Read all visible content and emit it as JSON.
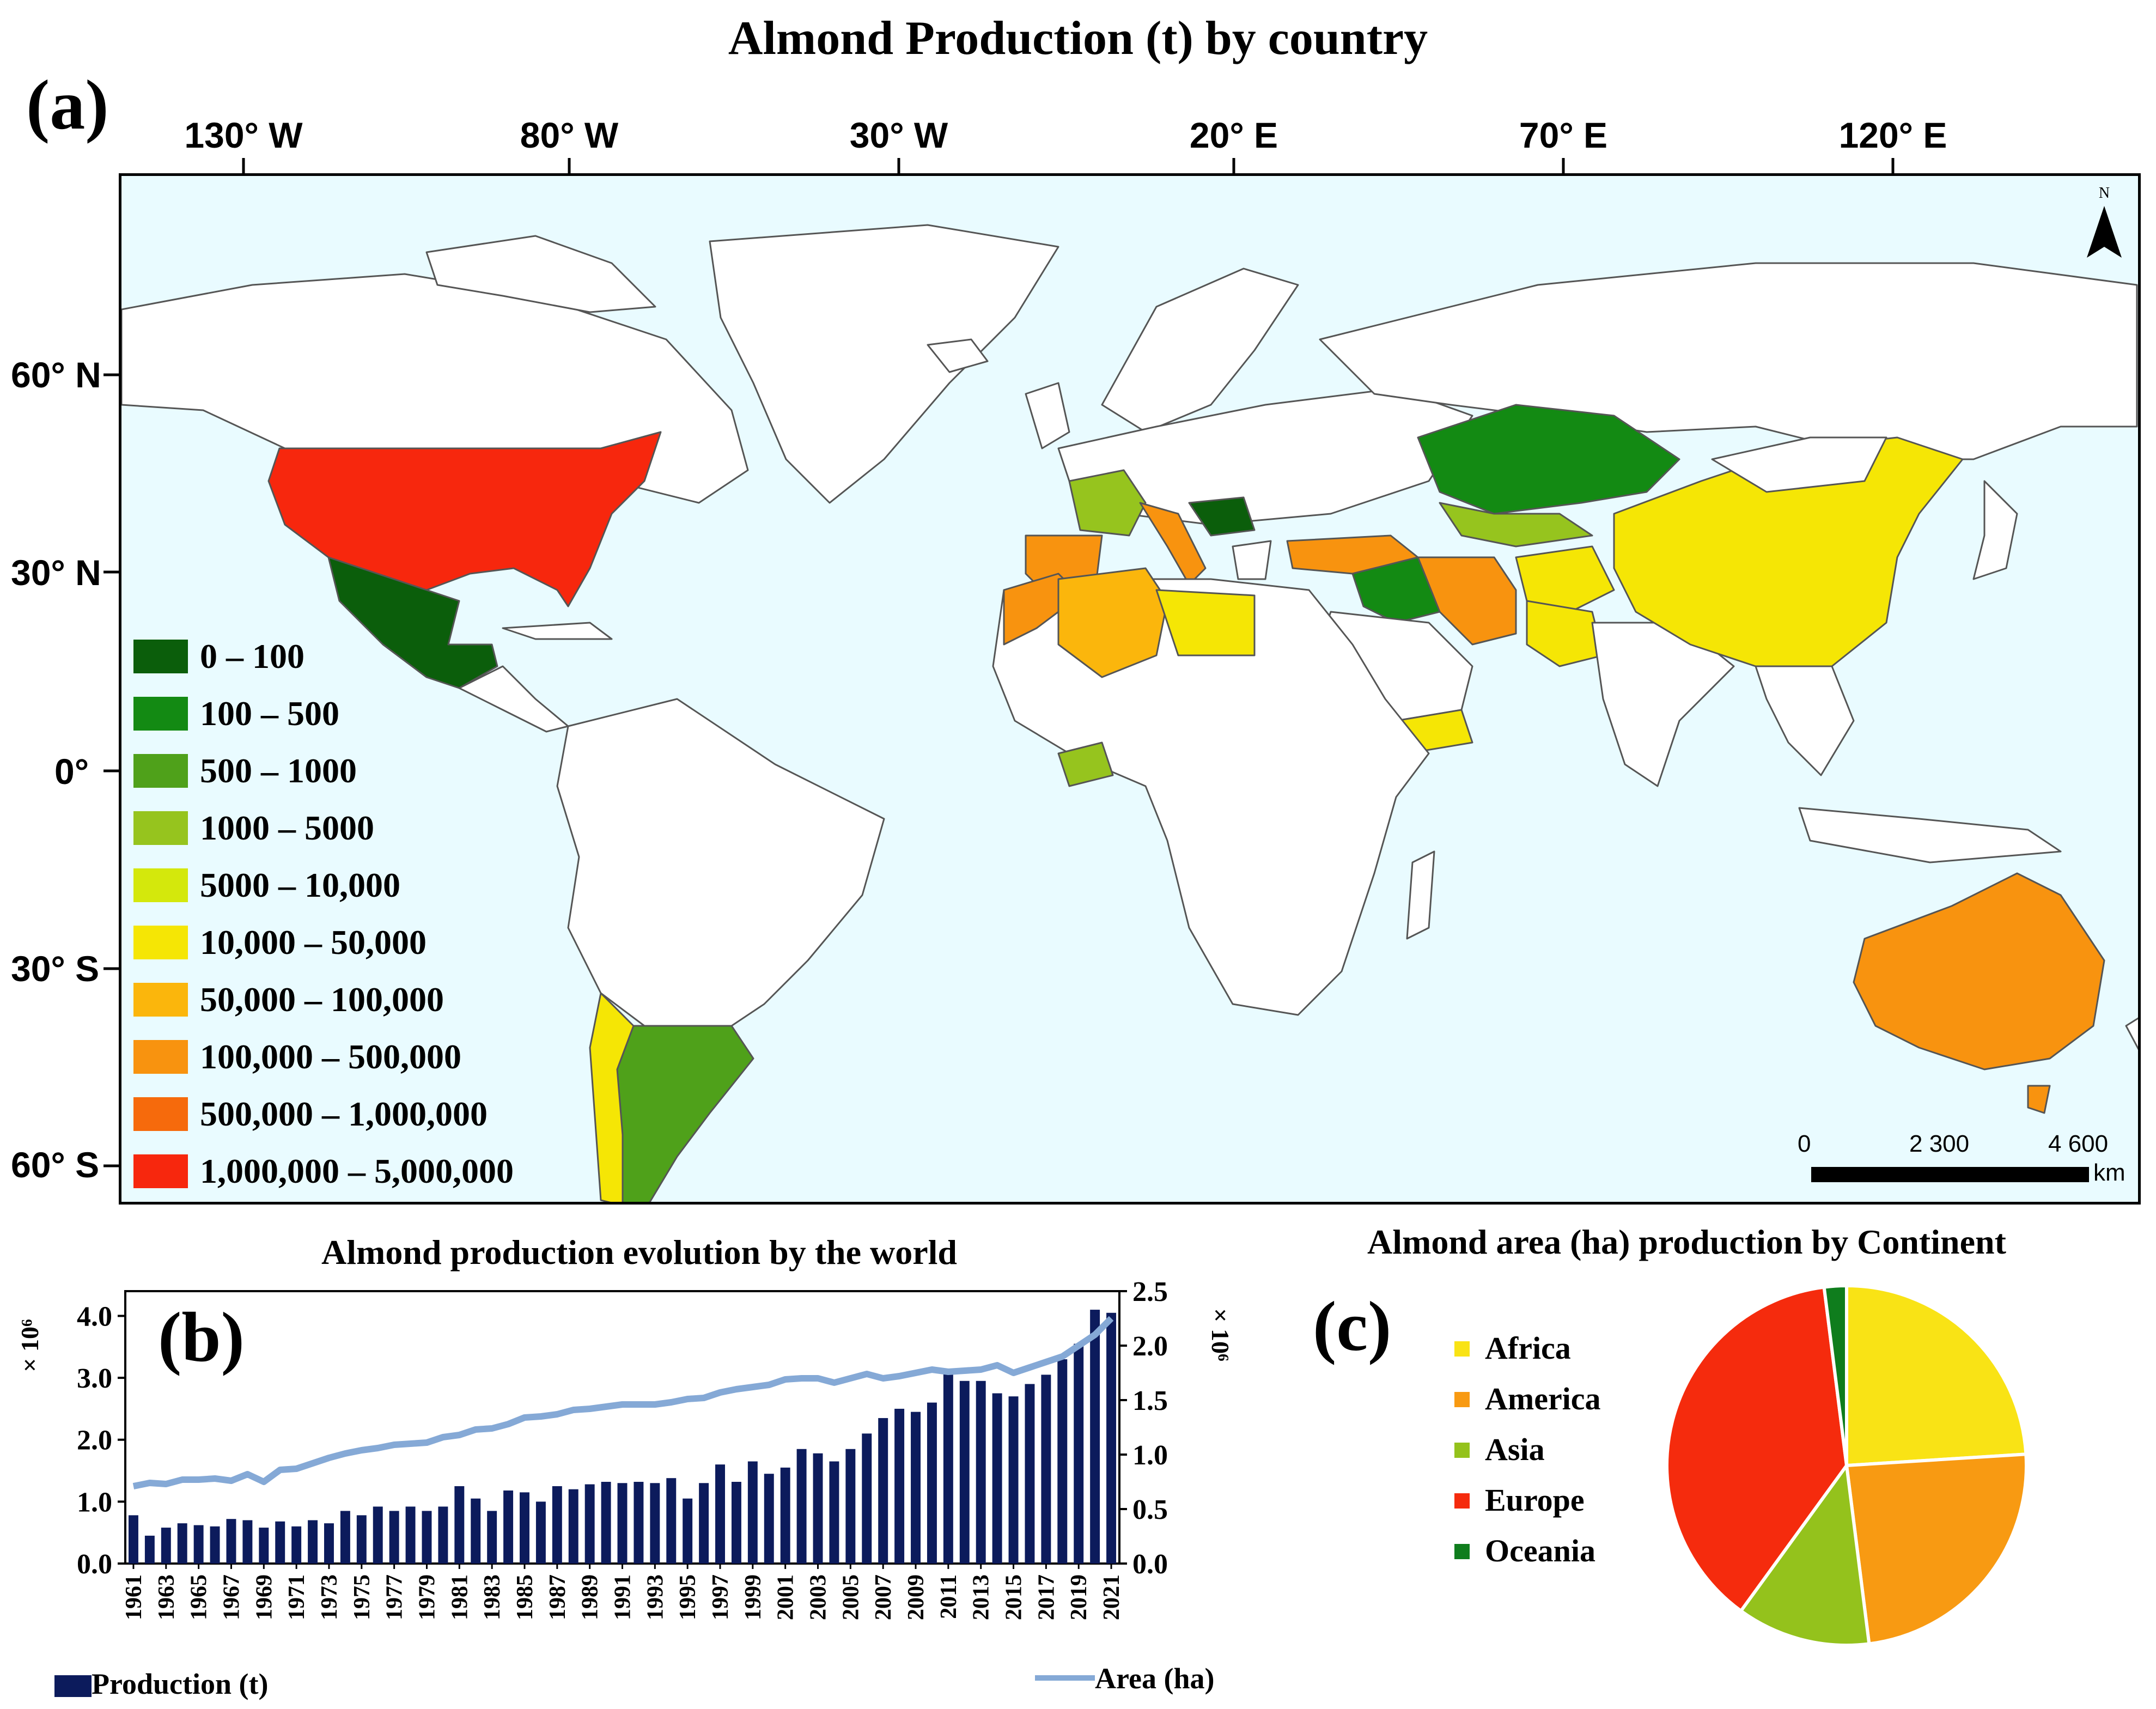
{
  "figure": {
    "title": "Almond Production (t) by country",
    "label_a": "(a)",
    "label_b": "(b)",
    "label_c": "(c)"
  },
  "map": {
    "longitude_labels": [
      "130° W",
      "80° W",
      "30° W",
      "20° E",
      "70° E",
      "120° E"
    ],
    "latitude_labels": [
      "60° N",
      "30° N",
      "0°",
      "30° S",
      "60° S"
    ],
    "north_label": "N",
    "scale": {
      "ticks": [
        "0",
        "2 300",
        "4 600"
      ],
      "unit": "km"
    },
    "legend": [
      {
        "label": "0 – 100",
        "color": "#0b5e0b"
      },
      {
        "label": "100 – 500",
        "color": "#138a13"
      },
      {
        "label": "500 – 1000",
        "color": "#4fa11a"
      },
      {
        "label": "1000 – 5000",
        "color": "#96c41e"
      },
      {
        "label": "5000 – 10,000",
        "color": "#d4e80c"
      },
      {
        "label": "10,000 – 50,000",
        "color": "#f5e605"
      },
      {
        "label": "50,000 – 100,000",
        "color": "#fbb60c"
      },
      {
        "label": "100,000 – 500,000",
        "color": "#f8930f"
      },
      {
        "label": "500,000 – 1,000,000",
        "color": "#f66a0c"
      },
      {
        "label": "1,000,000 – 5,000,000",
        "color": "#f7270d"
      }
    ],
    "colors": {
      "ocean": "#e9fbff",
      "land": "#ffffff",
      "border": "#555555"
    }
  },
  "chart_data": [
    {
      "type": "bar",
      "title": "Almond production evolution by the world",
      "left_axis_multiplier": "× 10⁶",
      "right_axis_multiplier": "× 10⁶",
      "left_ticks": [
        "0.0",
        "1.0",
        "2.0",
        "3.0",
        "4.0"
      ],
      "right_ticks": [
        "0.0",
        "0.5",
        "1.0",
        "1.5",
        "2.0",
        "2.5"
      ],
      "ylim_left": [
        0,
        4.4
      ],
      "ylim_right": [
        0,
        2.5
      ],
      "x_tick_labels": [
        "1961",
        "1963",
        "1965",
        "1967",
        "1969",
        "1971",
        "1973",
        "1975",
        "1977",
        "1979",
        "1981",
        "1983",
        "1985",
        "1987",
        "1989",
        "1991",
        "1993",
        "1995",
        "1997",
        "1999",
        "2001",
        "2003",
        "2005",
        "2007",
        "2009",
        "2011",
        "2013",
        "2015",
        "2017",
        "2019",
        "2021"
      ],
      "years": [
        1961,
        1962,
        1963,
        1964,
        1965,
        1966,
        1967,
        1968,
        1969,
        1970,
        1971,
        1972,
        1973,
        1974,
        1975,
        1976,
        1977,
        1978,
        1979,
        1980,
        1981,
        1982,
        1983,
        1984,
        1985,
        1986,
        1987,
        1988,
        1989,
        1990,
        1991,
        1992,
        1993,
        1994,
        1995,
        1996,
        1997,
        1998,
        1999,
        2000,
        2001,
        2002,
        2003,
        2004,
        2005,
        2006,
        2007,
        2008,
        2009,
        2010,
        2011,
        2012,
        2013,
        2014,
        2015,
        2016,
        2017,
        2018,
        2019,
        2020,
        2021
      ],
      "series": [
        {
          "name": "Production (t)",
          "axis": "left",
          "color": "#0c1b5c",
          "values": [
            0.78,
            0.45,
            0.58,
            0.65,
            0.62,
            0.6,
            0.72,
            0.7,
            0.58,
            0.68,
            0.6,
            0.7,
            0.65,
            0.85,
            0.78,
            0.92,
            0.85,
            0.92,
            0.85,
            0.92,
            1.25,
            1.05,
            0.85,
            1.18,
            1.15,
            1.0,
            1.25,
            1.2,
            1.28,
            1.32,
            1.3,
            1.32,
            1.3,
            1.38,
            1.05,
            1.3,
            1.6,
            1.32,
            1.65,
            1.45,
            1.55,
            1.85,
            1.78,
            1.65,
            1.85,
            2.1,
            2.35,
            2.5,
            2.45,
            2.6,
            3.1,
            2.95,
            2.95,
            2.75,
            2.7,
            2.9,
            3.05,
            3.3,
            3.55,
            4.1,
            4.05
          ]
        },
        {
          "name": "Area (ha)",
          "axis": "right",
          "color": "#85a9d6",
          "values": [
            0.71,
            0.74,
            0.73,
            0.77,
            0.77,
            0.78,
            0.76,
            0.82,
            0.75,
            0.86,
            0.87,
            0.92,
            0.97,
            1.01,
            1.04,
            1.06,
            1.09,
            1.1,
            1.11,
            1.16,
            1.18,
            1.23,
            1.24,
            1.28,
            1.34,
            1.35,
            1.37,
            1.41,
            1.42,
            1.44,
            1.46,
            1.46,
            1.46,
            1.48,
            1.51,
            1.52,
            1.57,
            1.6,
            1.62,
            1.64,
            1.69,
            1.7,
            1.7,
            1.66,
            1.7,
            1.74,
            1.7,
            1.72,
            1.75,
            1.78,
            1.76,
            1.77,
            1.78,
            1.82,
            1.75,
            1.8,
            1.85,
            1.9,
            2.0,
            2.1,
            2.25
          ]
        }
      ]
    },
    {
      "type": "pie",
      "title": "Almond area (ha) production by Continent",
      "labels": [
        "Africa",
        "America",
        "Asia",
        "Europe",
        "Oceania"
      ],
      "values": [
        24,
        24,
        12,
        38,
        2
      ],
      "colors": [
        "#f9e315",
        "#f89a12",
        "#94c21c",
        "#f52b0d",
        "#0f7d1d"
      ]
    }
  ]
}
